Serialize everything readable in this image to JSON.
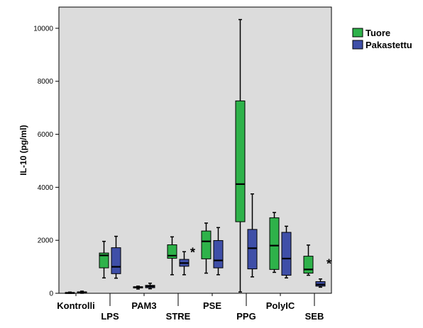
{
  "chart_data": {
    "type": "box",
    "ylabel": "IL-10 (pg/ml)",
    "xlabel": "",
    "ylim": [
      0,
      10800
    ],
    "yticks": [
      0,
      2000,
      4000,
      6000,
      8000,
      10000
    ],
    "categories": [
      "Kontrolli",
      "LPS",
      "PAM3",
      "STRE",
      "PSE",
      "PPG",
      "PolyIC",
      "SEB"
    ],
    "legend_position": "right",
    "background": "#dcdcdc",
    "grid": false,
    "series": [
      {
        "name": "Tuore",
        "color": "#2eb24a",
        "boxes": [
          {
            "min": 0,
            "q1": 5,
            "median": 15,
            "q3": 30,
            "max": 45
          },
          {
            "min": 580,
            "q1": 960,
            "median": 1430,
            "q3": 1520,
            "max": 1960
          },
          {
            "min": 160,
            "q1": 200,
            "median": 220,
            "q3": 250,
            "max": 270
          },
          {
            "min": 700,
            "q1": 1320,
            "median": 1420,
            "q3": 1830,
            "max": 2130
          },
          {
            "min": 760,
            "q1": 1300,
            "median": 1960,
            "q3": 2350,
            "max": 2650
          },
          {
            "min": 50,
            "q1": 2700,
            "median": 4120,
            "q3": 7260,
            "max": 10330
          },
          {
            "min": 790,
            "q1": 900,
            "median": 1800,
            "q3": 2850,
            "max": 3050
          },
          {
            "min": 680,
            "q1": 760,
            "median": 900,
            "q3": 1400,
            "max": 1820
          }
        ]
      },
      {
        "name": "Pakastettu",
        "color": "#3f4fa8",
        "boxes": [
          {
            "min": 0,
            "q1": 10,
            "median": 30,
            "q3": 55,
            "max": 80
          },
          {
            "min": 570,
            "q1": 740,
            "median": 1000,
            "q3": 1720,
            "max": 2150
          },
          {
            "min": 170,
            "q1": 210,
            "median": 260,
            "q3": 300,
            "max": 380
          },
          {
            "min": 700,
            "q1": 1020,
            "median": 1140,
            "q3": 1280,
            "max": 1570
          },
          {
            "min": 700,
            "q1": 960,
            "median": 1240,
            "q3": 1990,
            "max": 2480
          },
          {
            "min": 620,
            "q1": 920,
            "median": 1700,
            "q3": 2410,
            "max": 3750
          },
          {
            "min": 580,
            "q1": 680,
            "median": 1310,
            "q3": 2300,
            "max": 2530
          },
          {
            "min": 230,
            "q1": 270,
            "median": 330,
            "q3": 440,
            "max": 540
          }
        ]
      }
    ],
    "annotations": [
      {
        "category": "STRE",
        "text": "*"
      },
      {
        "category": "SEB",
        "text": "*"
      }
    ]
  }
}
